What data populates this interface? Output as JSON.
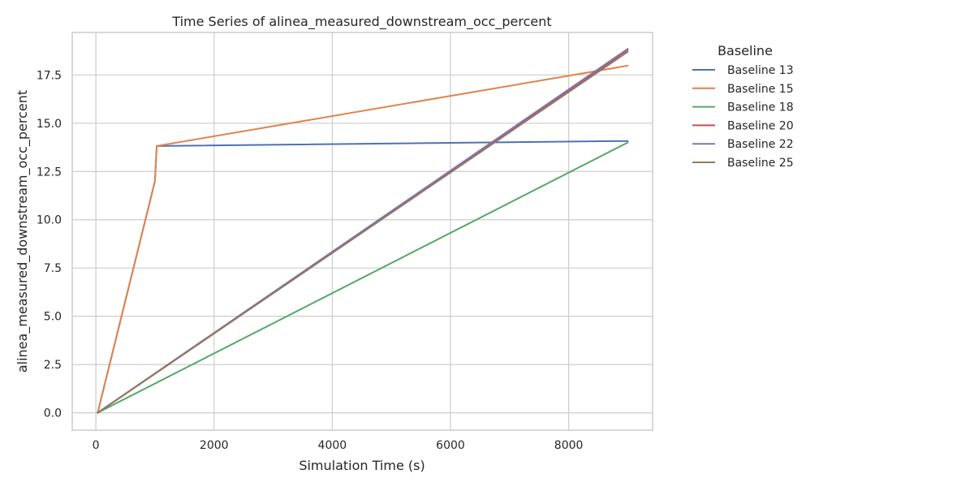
{
  "chart_data": {
    "type": "line",
    "title": "Time Series of alinea_measured_downstream_occ_percent",
    "xlabel": "Simulation Time (s)",
    "ylabel": "alinea_measured_downstream_occ_percent",
    "xlim": [
      -400,
      9420
    ],
    "ylim": [
      -0.9,
      19.7
    ],
    "xticks": [
      0,
      2000,
      4000,
      6000,
      8000
    ],
    "xtick_labels": [
      "0",
      "2000",
      "4000",
      "6000",
      "8000"
    ],
    "yticks": [
      0.0,
      2.5,
      5.0,
      7.5,
      10.0,
      12.5,
      15.0,
      17.5
    ],
    "ytick_labels": [
      "0.0",
      "2.5",
      "5.0",
      "7.5",
      "10.0",
      "12.5",
      "15.0",
      "17.5"
    ],
    "grid": true,
    "legend": {
      "title": "Baseline",
      "placement": "outside-right"
    },
    "series": [
      {
        "name": "Baseline 13",
        "color": "#4c72b0",
        "x": [
          30,
          1000,
          1030,
          9000
        ],
        "y": [
          0.0,
          12.0,
          13.82,
          14.08
        ]
      },
      {
        "name": "Baseline 15",
        "color": "#dd8452",
        "x": [
          30,
          1000,
          1030,
          9000
        ],
        "y": [
          0.0,
          12.0,
          13.82,
          17.98
        ]
      },
      {
        "name": "Baseline 18",
        "color": "#55a868",
        "x": [
          30,
          9000
        ],
        "y": [
          0.0,
          14.0
        ]
      },
      {
        "name": "Baseline 20",
        "color": "#c44e52",
        "x": [
          30,
          9000
        ],
        "y": [
          0.0,
          18.8
        ]
      },
      {
        "name": "Baseline 22",
        "color": "#8172b3",
        "x": [
          30,
          9000
        ],
        "y": [
          0.0,
          18.85
        ]
      },
      {
        "name": "Baseline 25",
        "color": "#937860",
        "x": [
          30,
          9000
        ],
        "y": [
          0.0,
          18.7
        ]
      }
    ]
  }
}
